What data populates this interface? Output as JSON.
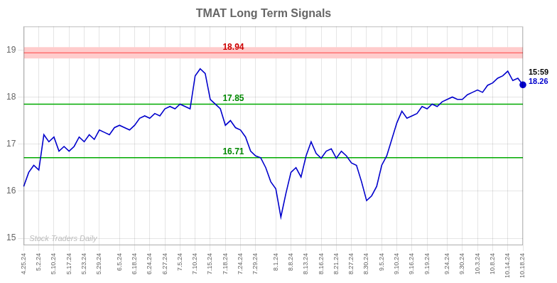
{
  "chart_data": {
    "type": "line",
    "title": "TMAT Long Term Signals",
    "color": "#0000cc",
    "categories": [
      "4.25.24",
      null,
      null,
      "5.2.24",
      null,
      null,
      "5.10.24",
      null,
      null,
      "5.17.24",
      null,
      null,
      "5.23.24",
      null,
      null,
      "5.29.24",
      null,
      null,
      null,
      "6.5.24",
      null,
      null,
      "6.18.24",
      null,
      null,
      "6.24.24",
      null,
      null,
      "6.27.24",
      null,
      null,
      "7.5.24",
      null,
      null,
      "7.10.24",
      null,
      null,
      "7.15.24",
      null,
      null,
      "7.18.24",
      null,
      null,
      "7.24.24",
      null,
      null,
      "7.29.24",
      null,
      null,
      null,
      "8.1.24",
      null,
      null,
      "8.8.24",
      null,
      null,
      "8.13.24",
      null,
      null,
      "8.16.24",
      null,
      null,
      "8.21.24",
      null,
      null,
      "8.27.24",
      null,
      null,
      "8.30.24",
      null,
      null,
      "9.5.24",
      null,
      null,
      "9.10.24",
      null,
      null,
      "9.16.24",
      null,
      null,
      "9.19.24",
      null,
      null,
      null,
      "9.24.24",
      null,
      null,
      "9.30.24",
      null,
      null,
      "10.3.24",
      null,
      null,
      "10.8.24",
      null,
      null,
      "10.14.24",
      null,
      null,
      "10.18.24"
    ],
    "values": [
      16.1,
      16.4,
      16.55,
      16.45,
      17.2,
      17.05,
      17.15,
      16.85,
      16.95,
      16.85,
      16.95,
      17.15,
      17.05,
      17.2,
      17.1,
      17.3,
      17.25,
      17.2,
      17.35,
      17.4,
      17.35,
      17.3,
      17.4,
      17.55,
      17.6,
      17.55,
      17.65,
      17.6,
      17.75,
      17.8,
      17.75,
      17.85,
      17.8,
      17.75,
      18.45,
      18.6,
      18.5,
      17.95,
      17.85,
      17.75,
      17.4,
      17.5,
      17.35,
      17.3,
      17.15,
      16.85,
      16.75,
      16.71,
      16.5,
      16.2,
      16.05,
      15.45,
      15.95,
      16.4,
      16.5,
      16.3,
      16.75,
      17.05,
      16.8,
      16.7,
      16.85,
      16.9,
      16.7,
      16.85,
      16.75,
      16.6,
      16.55,
      16.2,
      15.8,
      15.9,
      16.1,
      16.55,
      16.75,
      17.1,
      17.45,
      17.7,
      17.55,
      17.6,
      17.65,
      17.8,
      17.75,
      17.85,
      17.8,
      17.9,
      17.95,
      18.0,
      17.95,
      17.95,
      18.05,
      18.1,
      18.15,
      18.1,
      18.25,
      18.3,
      18.4,
      18.45,
      18.55,
      18.35,
      18.4,
      18.26
    ],
    "ylim": [
      14.85,
      19.5
    ],
    "yticks": [
      15,
      16,
      17,
      18,
      19
    ],
    "grid": true,
    "hlines": [
      {
        "y": 18.94,
        "label": "18.94",
        "color": "#ff4444",
        "label_color": "#cc0000",
        "band_color": "#ffcccc"
      },
      {
        "y": 17.85,
        "label": "17.85",
        "color": "#00aa00",
        "label_color": "#008800"
      },
      {
        "y": 16.71,
        "label": "16.71",
        "color": "#00aa00",
        "label_color": "#008800"
      }
    ],
    "last_point": {
      "time": "15:59",
      "label": "18.26",
      "color": "#0000cc"
    },
    "watermark": {
      "text": "Stock Traders Daily",
      "color": "#bbbbbb"
    }
  }
}
